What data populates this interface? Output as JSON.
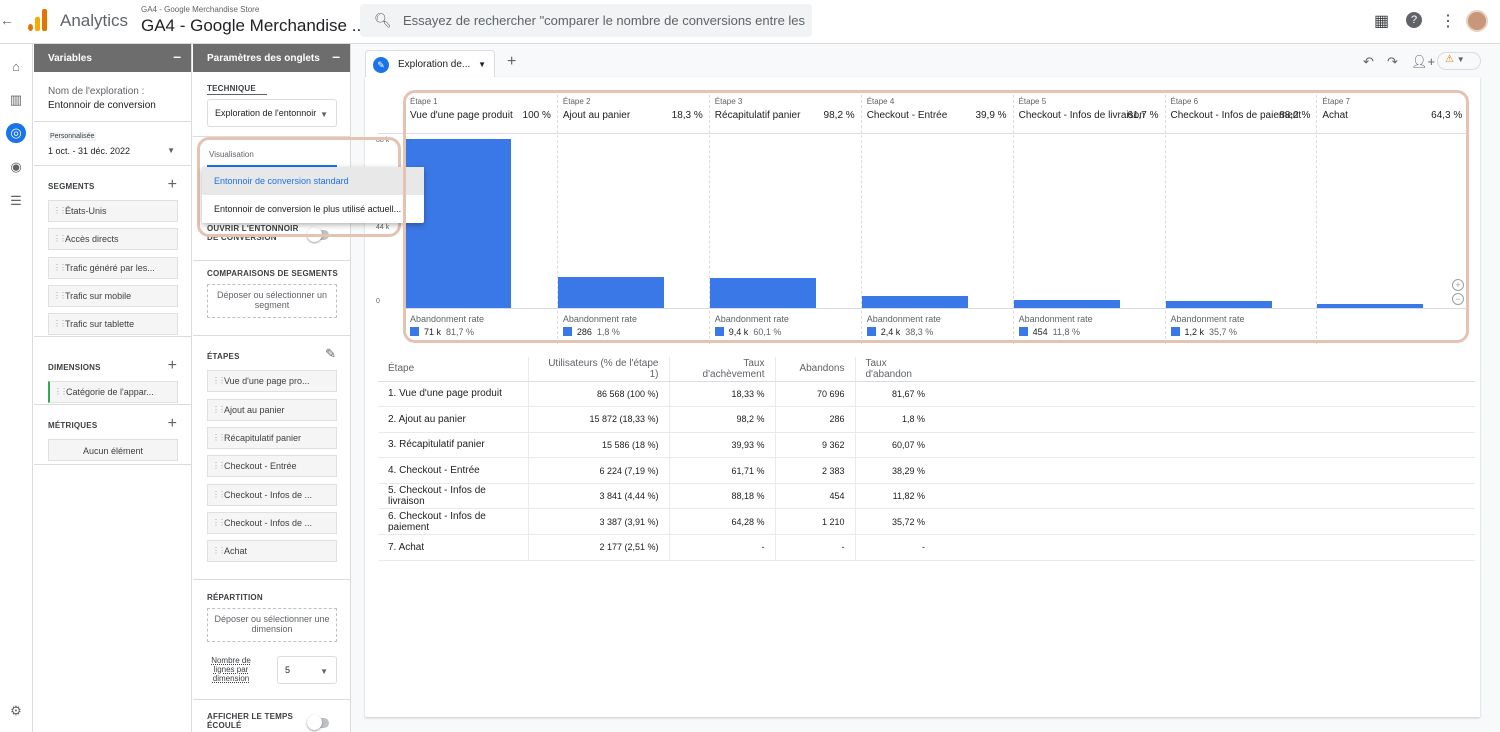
{
  "app": {
    "brand": "Analytics",
    "account_small": "GA4 - Google Merchandise Store",
    "account_big": "GA4 - Google Merchandise ..."
  },
  "search": {
    "placeholder": "Essayez de rechercher \"comparer le nombre de conversions entre les rés..."
  },
  "variables": {
    "header": "Variables",
    "exploration_label": "Nom de l'exploration :",
    "exploration_name": "Entonnoir de conversion",
    "date_badge": "Personnalisée",
    "date_range": "1 oct. - 31 déc. 2022",
    "segments_label": "SEGMENTS",
    "segments": [
      "États-Unis",
      "Accès directs",
      "Trafic généré par les...",
      "Trafic sur mobile",
      "Trafic sur tablette"
    ],
    "dimensions_label": "DIMENSIONS",
    "dimensions": [
      "Catégorie de l'appar..."
    ],
    "metrics_label": "MÉTRIQUES",
    "metrics_empty": "Aucun élément"
  },
  "settings": {
    "header": "Paramètres des onglets",
    "technique_label": "TECHNIQUE",
    "technique_value": "Exploration de l'entonnoir",
    "visualisation_label": "Visualisation",
    "visualisation_options": [
      "Entonnoir de conversion standard",
      "Entonnoir de conversion le plus utilisé actuell..."
    ],
    "open_funnel_label": "OUVRIR L'ENTONNOIR DE CONVERSION",
    "segment_comparisons_label": "COMPARAISONS DE SEGMENTS",
    "segment_drop": "Déposer ou sélectionner un segment",
    "steps_label": "ÉTAPES",
    "steps": [
      "Vue d'une page pro...",
      "Ajout au panier",
      "Récapitulatif panier",
      "Checkout - Entrée",
      "Checkout - Infos de ...",
      "Checkout - Infos de ...",
      "Achat"
    ],
    "breakdown_label": "RÉPARTITION",
    "breakdown_drop": "Déposer ou sélectionner une dimension",
    "rows_label": "Nombre de lignes par dimension",
    "rows_value": "5",
    "elapsed_label": "AFFICHER LE TEMPS ÉCOULÉ"
  },
  "tab": {
    "label": "Exploration de..."
  },
  "chart_data": {
    "type": "bar",
    "categories": [
      "Vue d'une page produit",
      "Ajout au panier",
      "Récapitulatif panier",
      "Checkout - Entrée",
      "Checkout - Infos de livraison",
      "Checkout - Infos de paiement",
      "Achat"
    ],
    "step_labels": [
      "Étape 1",
      "Étape 2",
      "Étape 3",
      "Étape 4",
      "Étape 5",
      "Étape 6",
      "Étape 7"
    ],
    "step_pcts": [
      "100 %",
      "18,3 %",
      "98,2 %",
      "39,9 %",
      "61,7 %",
      "88,2 %",
      "64,3 %"
    ],
    "values": [
      86568,
      15872,
      15586,
      6224,
      3841,
      3387,
      2177
    ],
    "ylim": [
      0,
      88000
    ],
    "yticks": [
      "88 k",
      "44 k",
      "0"
    ],
    "abandon_label": "Abandonment rate",
    "abandon_counts": [
      "71 k",
      "286",
      "9,4 k",
      "2,4 k",
      "454",
      "1,2 k"
    ],
    "abandon_rates": [
      "81,7 %",
      "1,8 %",
      "60,1 %",
      "38,3 %",
      "11,8 %",
      "35,7 %"
    ],
    "color": "#3b78e7"
  },
  "table": {
    "headers": [
      "Étape",
      "Utilisateurs (% de l'étape 1)",
      "Taux d'achèvement",
      "Abandons",
      "Taux d'abandon"
    ],
    "rows": [
      [
        "1. Vue d'une page produit",
        "86 568 (100 %)",
        "18,33 %",
        "70 696",
        "81,67 %"
      ],
      [
        "2. Ajout au panier",
        "15 872 (18,33 %)",
        "98,2 %",
        "286",
        "1,8 %"
      ],
      [
        "3. Récapitulatif panier",
        "15 586 (18 %)",
        "39,93 %",
        "9 362",
        "60,07 %"
      ],
      [
        "4. Checkout - Entrée",
        "6 224 (7,19 %)",
        "61,71 %",
        "2 383",
        "38,29 %"
      ],
      [
        "5. Checkout - Infos de livraison",
        "3 841 (4,44 %)",
        "88,18 %",
        "454",
        "11,82 %"
      ],
      [
        "6. Checkout - Infos de paiement",
        "3 387 (3,91 %)",
        "64,28 %",
        "1 210",
        "35,72 %"
      ],
      [
        "7. Achat",
        "2 177 (2,51 %)",
        "-",
        "-",
        "-"
      ]
    ]
  }
}
